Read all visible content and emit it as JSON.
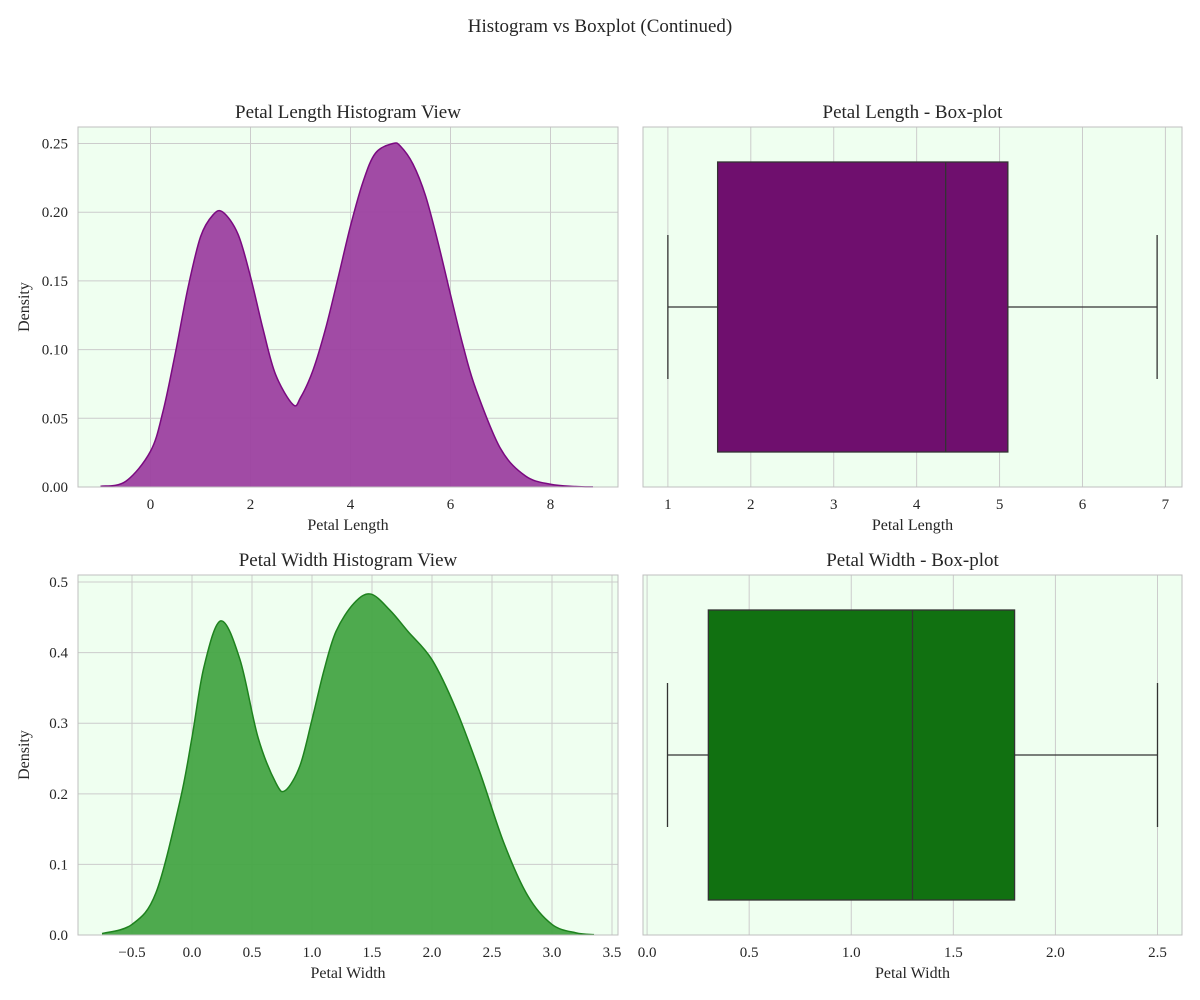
{
  "figure_title": "Histogram vs Boxplot (Continued)",
  "colors": {
    "panel_bg": "#effff0",
    "grid": "#cccccc",
    "spine": "#bfbfbf",
    "purple_fill": "#9c41a0",
    "purple_line": "#7a0a80",
    "purple_box": "#6f0f6e",
    "green_fill": "#45a545",
    "green_line": "#1e821e",
    "green_box": "#117111",
    "whisker": "#333333"
  },
  "chart_data": [
    {
      "id": "petal-length-kde",
      "type": "area",
      "title": "Petal Length Histogram View",
      "xlabel": "Petal Length",
      "ylabel": "Density",
      "xlim": [
        -1.45,
        9.35
      ],
      "ylim": [
        0,
        0.262
      ],
      "xticks": [
        0,
        2,
        4,
        6,
        8
      ],
      "xtick_labels": [
        "0",
        "2",
        "4",
        "6",
        "8"
      ],
      "yticks": [
        0,
        0.05,
        0.1,
        0.15,
        0.2,
        0.25
      ],
      "ytick_labels": [
        "0.00",
        "0.05",
        "0.10",
        "0.15",
        "0.20",
        "0.25"
      ],
      "grid": true,
      "color_key": "purple",
      "x": [
        -1.0,
        -0.5,
        0.0,
        0.25,
        0.5,
        0.75,
        1.0,
        1.25,
        1.45,
        1.75,
        2.0,
        2.25,
        2.5,
        2.85,
        3.0,
        3.25,
        3.5,
        3.75,
        4.0,
        4.25,
        4.5,
        4.85,
        5.0,
        5.25,
        5.5,
        5.75,
        6.0,
        6.25,
        6.5,
        7.0,
        7.5,
        8.0,
        8.5,
        8.85
      ],
      "y": [
        0.0005,
        0.004,
        0.026,
        0.055,
        0.098,
        0.145,
        0.182,
        0.198,
        0.2,
        0.184,
        0.153,
        0.115,
        0.082,
        0.06,
        0.065,
        0.085,
        0.115,
        0.152,
        0.19,
        0.222,
        0.243,
        0.25,
        0.248,
        0.235,
        0.212,
        0.178,
        0.14,
        0.103,
        0.072,
        0.028,
        0.008,
        0.002,
        0.0004,
        0.0001
      ]
    },
    {
      "id": "petal-length-box",
      "type": "box",
      "title": "Petal Length - Box-plot",
      "xlabel": "Petal Length",
      "xlim": [
        0.7,
        7.2
      ],
      "xticks": [
        1,
        2,
        3,
        4,
        5,
        6,
        7
      ],
      "xtick_labels": [
        "1",
        "2",
        "3",
        "4",
        "5",
        "6",
        "7"
      ],
      "grid": true,
      "color_key": "purple",
      "stats": {
        "min": 1.0,
        "q1": 1.6,
        "median": 4.35,
        "q3": 5.1,
        "max": 6.9
      }
    },
    {
      "id": "petal-width-kde",
      "type": "area",
      "title": "Petal Width Histogram View",
      "xlabel": "Petal Width",
      "ylabel": "Density",
      "xlim": [
        -0.95,
        3.55
      ],
      "ylim": [
        0,
        0.51
      ],
      "xticks": [
        -0.5,
        0,
        0.5,
        1,
        1.5,
        2,
        2.5,
        3,
        3.5
      ],
      "xtick_labels": [
        "−0.5",
        "0.0",
        "0.5",
        "1.0",
        "1.5",
        "2.0",
        "2.5",
        "3.0",
        "3.5"
      ],
      "yticks": [
        0,
        0.1,
        0.2,
        0.3,
        0.4,
        0.5
      ],
      "ytick_labels": [
        "0.0",
        "0.1",
        "0.2",
        "0.3",
        "0.4",
        "0.5"
      ],
      "grid": true,
      "color_key": "green",
      "x": [
        -0.75,
        -0.5,
        -0.3,
        -0.1,
        0.0,
        0.1,
        0.24,
        0.4,
        0.55,
        0.7,
        0.78,
        0.9,
        1.0,
        1.1,
        1.2,
        1.35,
        1.49,
        1.65,
        1.8,
        2.0,
        2.2,
        2.4,
        2.6,
        2.8,
        3.0,
        3.2,
        3.35
      ],
      "y": [
        0.002,
        0.015,
        0.06,
        0.19,
        0.28,
        0.38,
        0.445,
        0.39,
        0.28,
        0.215,
        0.205,
        0.24,
        0.305,
        0.375,
        0.43,
        0.47,
        0.483,
        0.46,
        0.43,
        0.39,
        0.32,
        0.23,
        0.13,
        0.055,
        0.015,
        0.003,
        0.0005
      ]
    },
    {
      "id": "petal-width-box",
      "type": "box",
      "title": "Petal Width - Box-plot",
      "xlabel": "Petal Width",
      "xlim": [
        -0.02,
        2.62
      ],
      "xticks": [
        0,
        0.5,
        1,
        1.5,
        2,
        2.5
      ],
      "xtick_labels": [
        "0.0",
        "0.5",
        "1.0",
        "1.5",
        "2.0",
        "2.5"
      ],
      "grid": true,
      "color_key": "green",
      "stats": {
        "min": 0.1,
        "q1": 0.3,
        "median": 1.3,
        "q3": 1.8,
        "max": 2.5
      }
    }
  ]
}
